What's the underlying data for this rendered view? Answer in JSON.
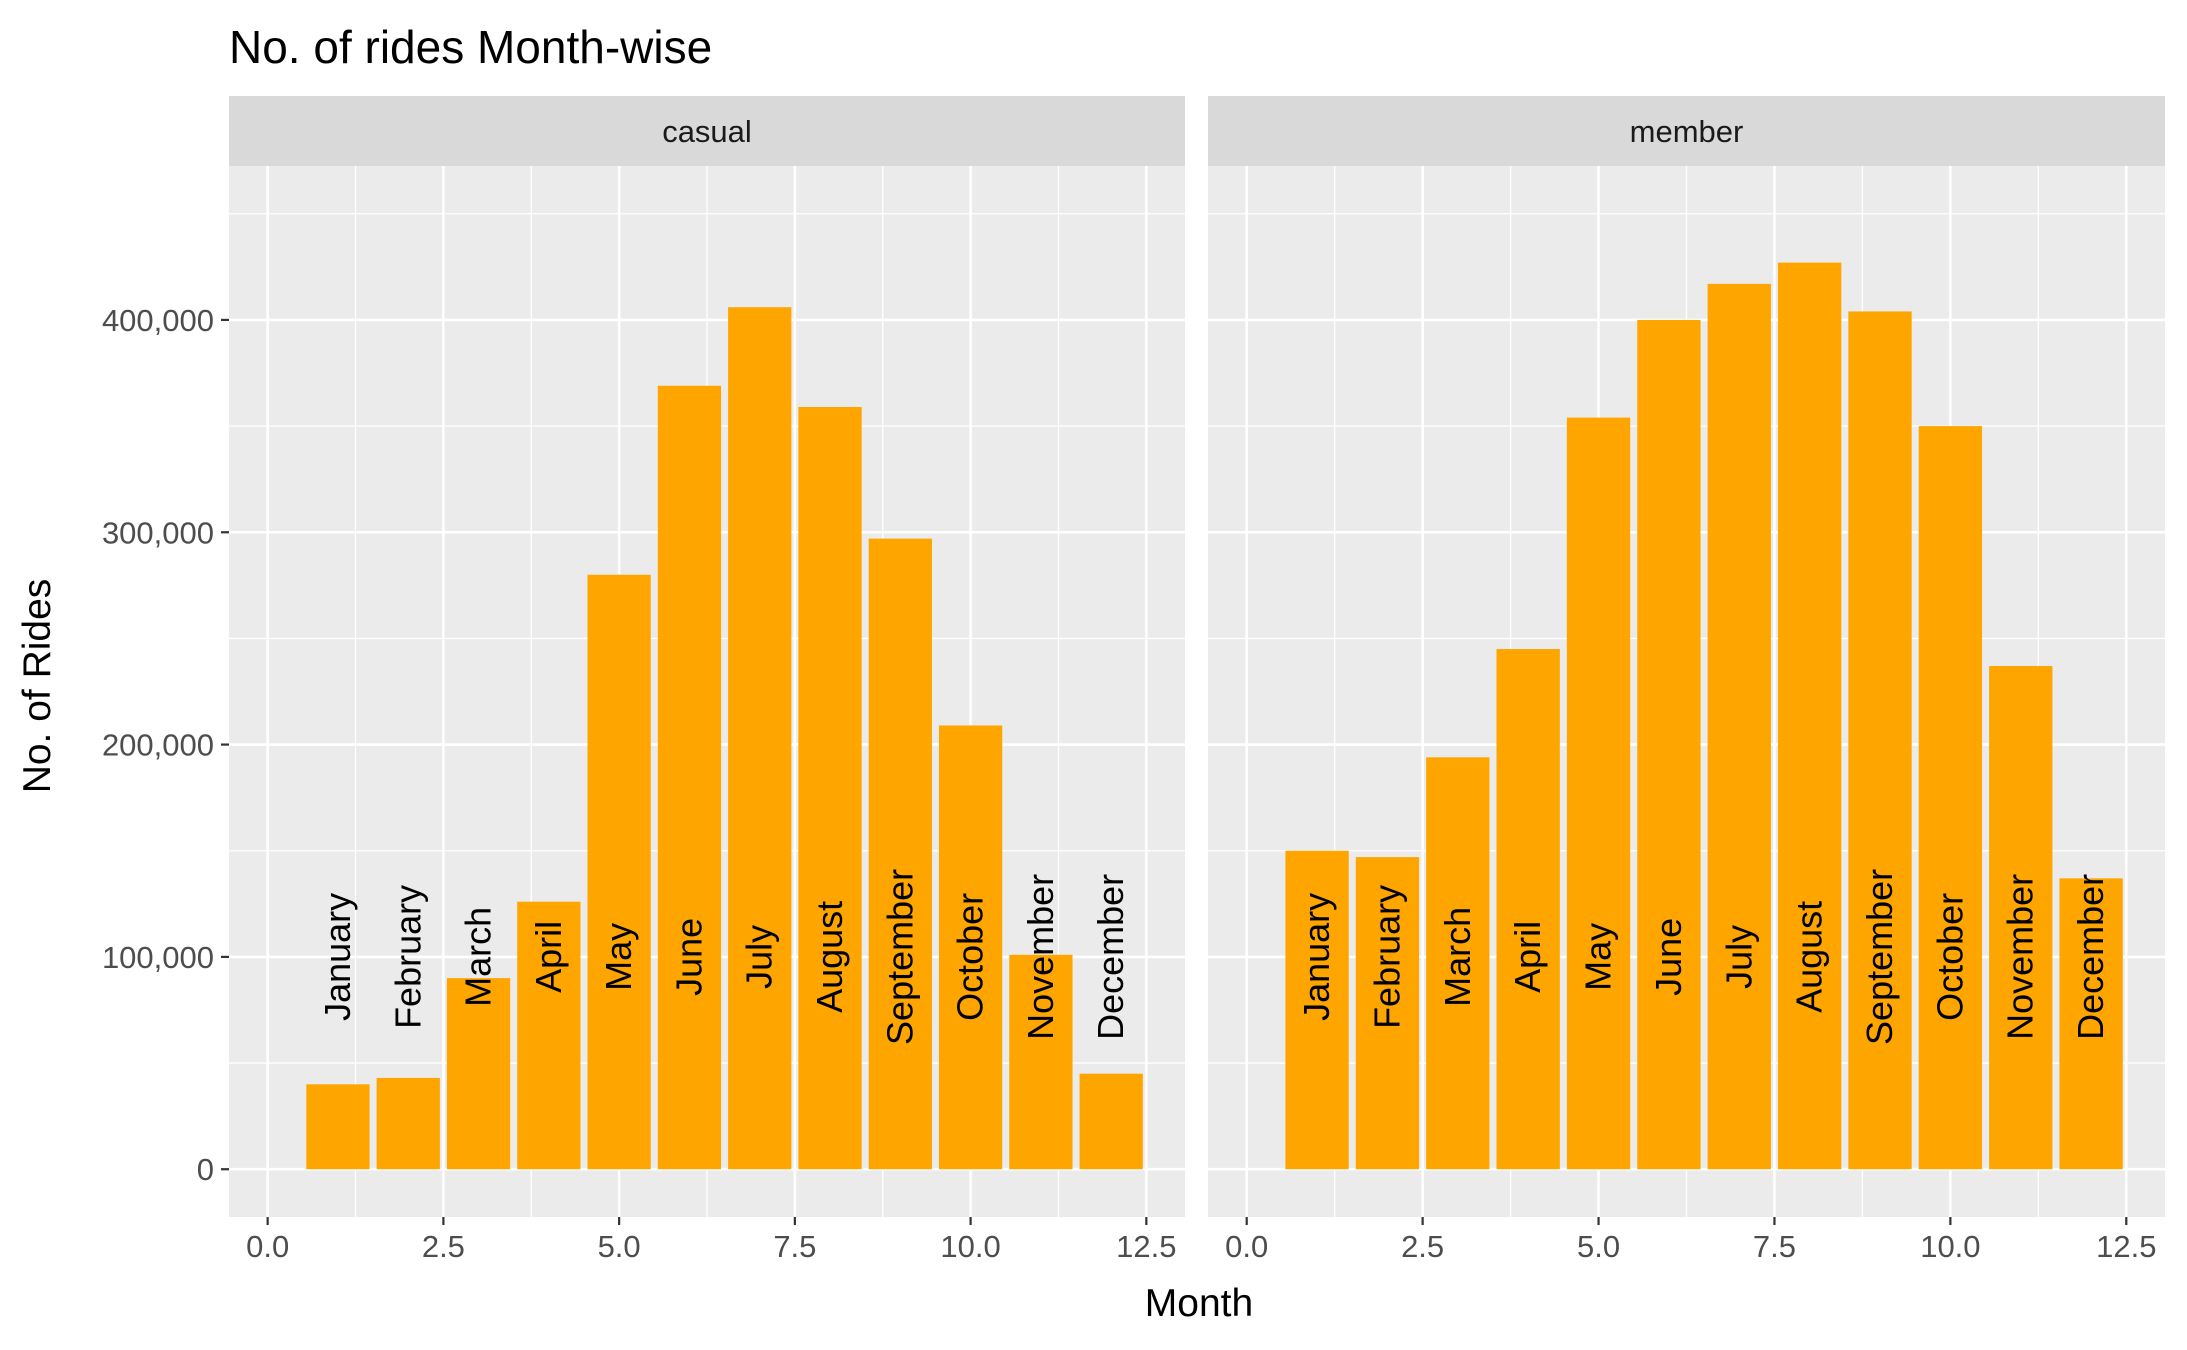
{
  "chart_data": {
    "type": "bar",
    "title": "No. of rides Month-wise",
    "xlabel": "Month",
    "ylabel": "No. of Rides",
    "xlim": [
      0,
      12.5
    ],
    "ylim": [
      0,
      450000
    ],
    "x_ticks": [
      0,
      2.5,
      5,
      7.5,
      10,
      12.5
    ],
    "x_tick_labels": [
      "0.0",
      "2.5",
      "5.0",
      "7.5",
      "10.0",
      "12.5"
    ],
    "y_ticks": [
      0,
      100000,
      200000,
      300000,
      400000
    ],
    "y_tick_labels": [
      "0",
      "100,000",
      "200,000",
      "300,000",
      "400,000"
    ],
    "grid": true,
    "bar_color": "#FFA500",
    "panel_background": "#EBEBEB",
    "strip_background": "#D9D9D9",
    "categories": [
      "January",
      "February",
      "March",
      "April",
      "May",
      "June",
      "July",
      "August",
      "September",
      "October",
      "November",
      "December"
    ],
    "x": [
      1,
      2,
      3,
      4,
      5,
      6,
      7,
      8,
      9,
      10,
      11,
      12
    ],
    "label_y": 100000,
    "facets": [
      {
        "name": "casual",
        "values": [
          40000,
          43000,
          90000,
          126000,
          280000,
          369000,
          406000,
          359000,
          297000,
          209000,
          101000,
          45000
        ]
      },
      {
        "name": "member",
        "values": [
          150000,
          147000,
          194000,
          245000,
          354000,
          400000,
          417000,
          427000,
          404000,
          350000,
          237000,
          137000
        ]
      }
    ]
  }
}
